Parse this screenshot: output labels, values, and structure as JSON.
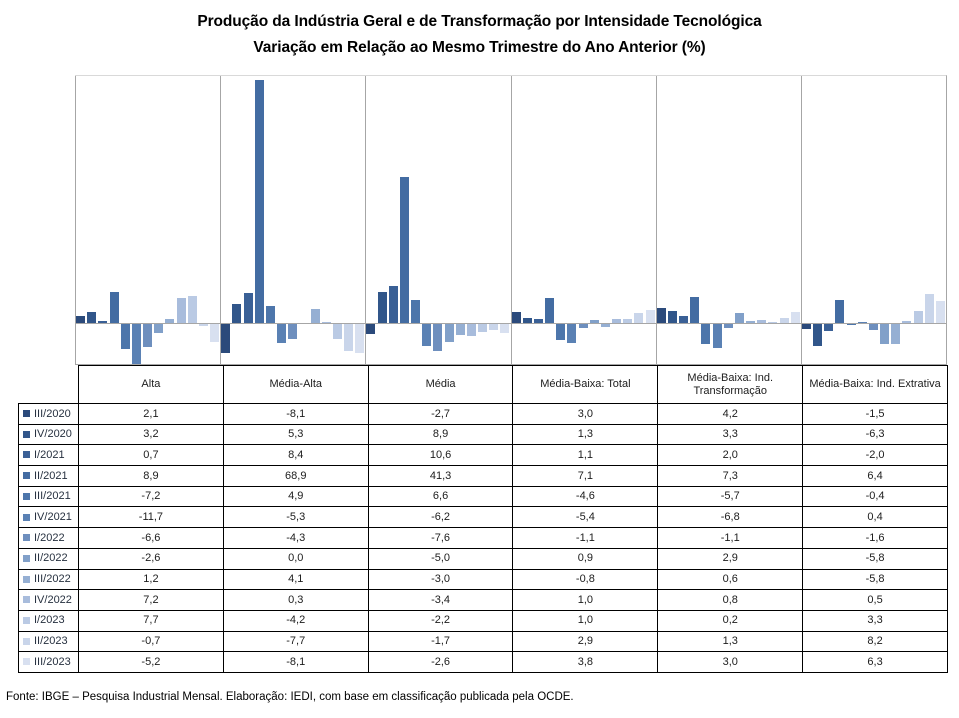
{
  "title": {
    "line1": "Produção da Indústria Geral e de Transformação por Intensidade Tecnológica",
    "line2": "Variação em Relação ao Mesmo Trimestre do Ano Anterior (%)"
  },
  "chart_data": {
    "type": "bar",
    "title": "Produção da Indústria Geral e de Transformação por Intensidade Tecnológica",
    "subtitle": "Variação em Relação ao Mesmo Trimestre do Ano Anterior (%)",
    "unit": "%",
    "number_format": "decimal-comma, 1 decimal place",
    "categories": [
      "Alta",
      "Média-Alta",
      "Média",
      "Média-Baixa: Total",
      "Média-Baixa: Ind. Transformação",
      "Média-Baixa: Ind. Extrativa"
    ],
    "series": [
      {
        "name": "III/2020",
        "color": "#2b4a7b",
        "values": [
          2.1,
          -8.1,
          -2.7,
          3.0,
          4.2,
          -1.5
        ]
      },
      {
        "name": "IV/2020",
        "color": "#31568a",
        "values": [
          3.2,
          5.3,
          8.9,
          1.3,
          3.3,
          -6.3
        ]
      },
      {
        "name": "I/2021",
        "color": "#3a6096",
        "values": [
          0.7,
          8.4,
          10.6,
          1.1,
          2.0,
          -2.0
        ]
      },
      {
        "name": "II/2021",
        "color": "#436ca2",
        "values": [
          8.9,
          68.9,
          41.3,
          7.1,
          7.3,
          6.4
        ]
      },
      {
        "name": "III/2021",
        "color": "#4d76ab",
        "values": [
          -7.2,
          4.9,
          6.6,
          -4.6,
          -5.7,
          -0.4
        ]
      },
      {
        "name": "IV/2021",
        "color": "#5a81b4",
        "values": [
          -11.7,
          -5.3,
          -6.2,
          -5.4,
          -6.8,
          0.4
        ]
      },
      {
        "name": "I/2022",
        "color": "#6e8fbe",
        "values": [
          -6.6,
          -4.3,
          -7.6,
          -1.1,
          -1.1,
          -1.6
        ]
      },
      {
        "name": "II/2022",
        "color": "#81a0c9",
        "values": [
          -2.6,
          0.0,
          -5.0,
          0.9,
          2.9,
          -5.8
        ]
      },
      {
        "name": "III/2022",
        "color": "#95afd3",
        "values": [
          1.2,
          4.1,
          -3.0,
          -0.8,
          0.6,
          -5.8
        ]
      },
      {
        "name": "IV/2022",
        "color": "#a8bcdc",
        "values": [
          7.2,
          0.3,
          -3.4,
          1.0,
          0.8,
          0.5
        ]
      },
      {
        "name": "I/2023",
        "color": "#bacae4",
        "values": [
          7.7,
          -4.2,
          -2.2,
          1.0,
          0.2,
          3.3
        ]
      },
      {
        "name": "II/2023",
        "color": "#c9d5ea",
        "values": [
          -0.7,
          -7.7,
          -1.7,
          2.9,
          1.3,
          8.2
        ]
      },
      {
        "name": "III/2023",
        "color": "#d8e0f0",
        "values": [
          -5.2,
          -8.1,
          -2.6,
          3.8,
          3.0,
          6.3
        ]
      }
    ],
    "ylim": [
      -11.7,
      70
    ],
    "y_axis_labels_visible": false,
    "grid": "vertical category separators only",
    "legend_position": "color keys in data-table row labels",
    "layout": "clustered columns over data table"
  },
  "footer": {
    "source": "Fonte: IBGE – Pesquisa Industrial Mensal. Elaboração: IEDI, com base em classificação publicada pela OCDE."
  },
  "colors": {
    "background": "#ffffff",
    "axis_line": "#a6a6a6",
    "panel_separator": "#a6a6a6",
    "plot_top_border": "#d9d9d9",
    "table_border": "#000000",
    "title_text": "#000000",
    "cell_text": "#1c1c1c"
  }
}
